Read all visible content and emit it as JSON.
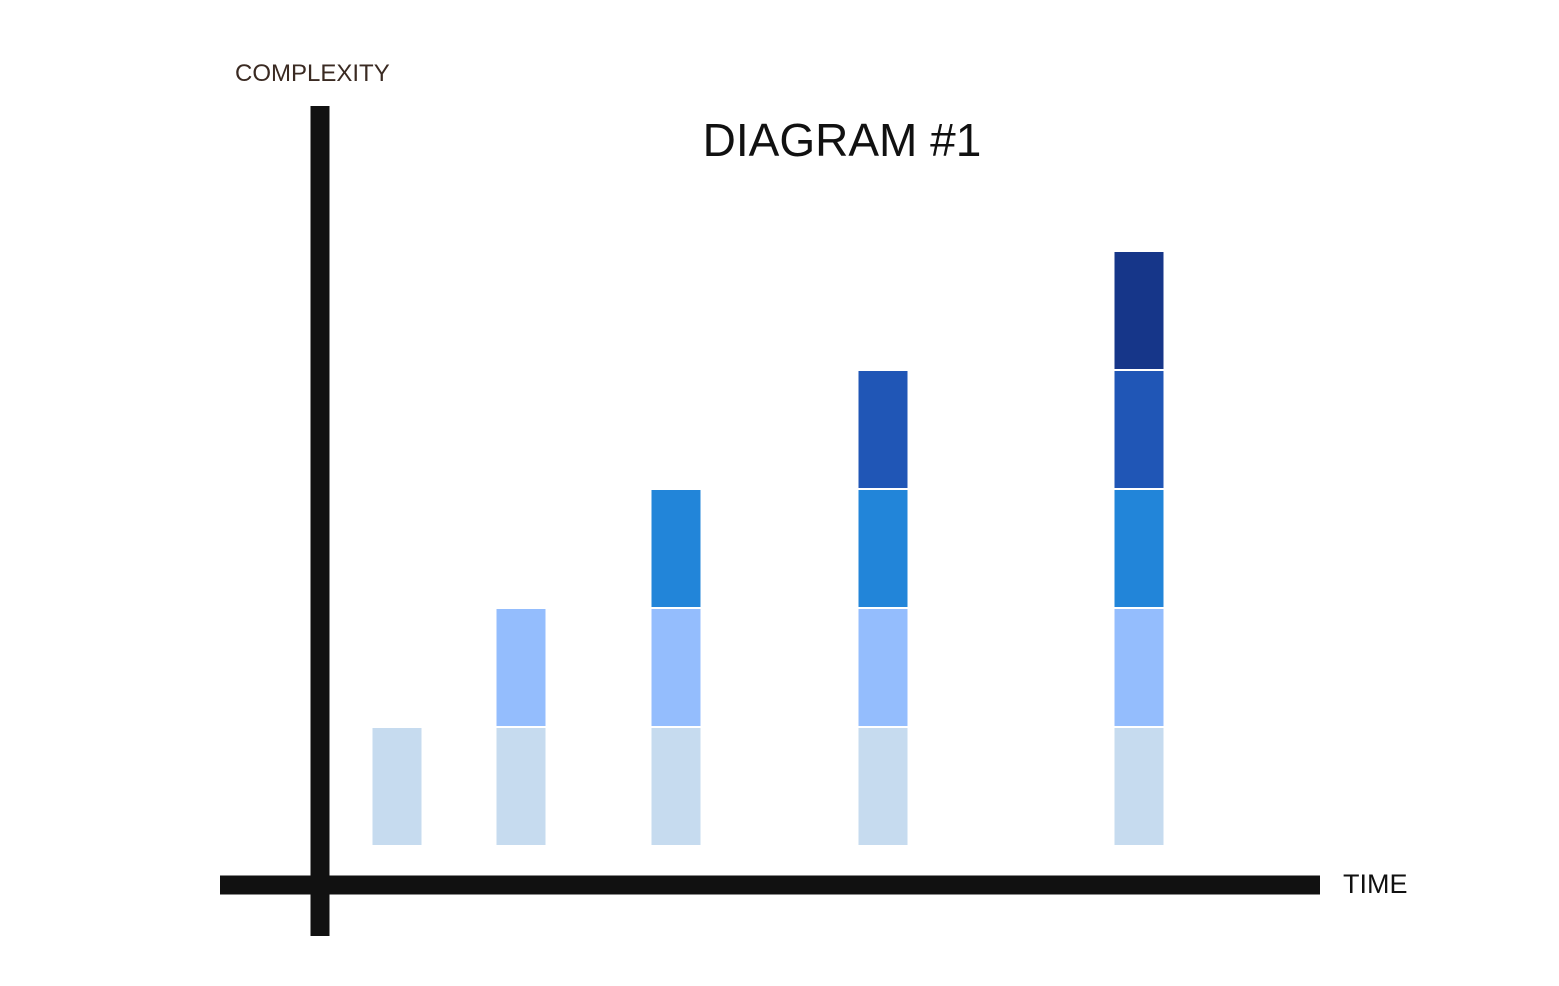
{
  "chart_data": {
    "type": "bar",
    "stacked": true,
    "title": "DIAGRAM #1",
    "xlabel": "TIME",
    "ylabel": "COMPLEXITY",
    "categories": [
      "",
      "",
      "",
      "",
      ""
    ],
    "series": [
      {
        "values": [
          1,
          1,
          1,
          1,
          1
        ],
        "color": "#c6dbef"
      },
      {
        "values": [
          0,
          1,
          1,
          1,
          1
        ],
        "color": "#94bdfd"
      },
      {
        "values": [
          0,
          0,
          1,
          1,
          1
        ],
        "color": "#2285d9"
      },
      {
        "values": [
          0,
          0,
          0,
          1,
          1
        ],
        "color": "#2056b6"
      },
      {
        "values": [
          0,
          0,
          0,
          0,
          1
        ],
        "color": "#163689"
      }
    ],
    "ylim": [
      0,
      6
    ],
    "grid": false,
    "tick_labels": false,
    "legend": "none"
  }
}
